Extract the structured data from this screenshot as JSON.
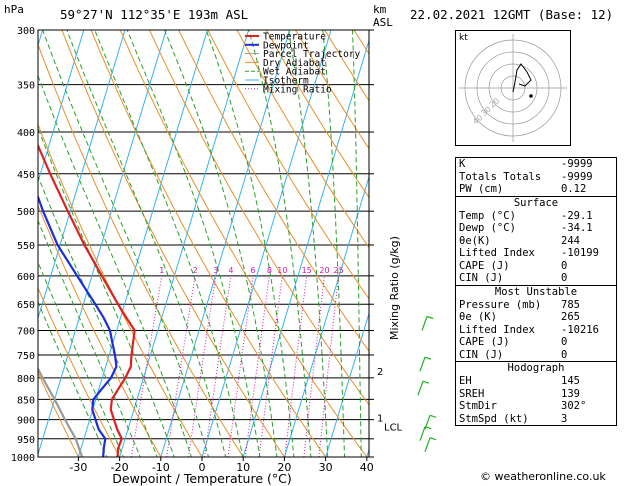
{
  "header": {
    "hpa_label": "hPa",
    "location": "59°27'N 112°35'E 193m ASL",
    "km_label": "km",
    "asl_label": "ASL",
    "datetime": "22.02.2021 12GMT (Base: 12)"
  },
  "chart_data": {
    "type": "skew-t",
    "xlabel": "Dewpoint / Temperature (°C)",
    "ylabel": "",
    "mixing_ratio_label": "Mixing Ratio (g/kg)",
    "x_ticks": [
      -30,
      -20,
      -10,
      0,
      10,
      20,
      30,
      40
    ],
    "pressure_ticks": [
      300,
      350,
      400,
      450,
      500,
      550,
      600,
      650,
      700,
      750,
      800,
      850,
      900,
      950,
      1000
    ],
    "km_ticks": [
      {
        "label": "2",
        "p": 785
      },
      {
        "label": "1",
        "p": 895
      }
    ],
    "lcl_label": "LCL",
    "lcl_p": 918,
    "mixing_ratio_values": [
      "1",
      "2",
      "3",
      "4",
      "6",
      "8",
      "10",
      "15",
      "20",
      "25"
    ],
    "legend": [
      "Temperature",
      "Dewpoint",
      "Parcel Trajectory",
      "Dry Adiabat",
      "Wet Adiabat",
      "Isotherm",
      "Mixing Ratio"
    ],
    "series": [
      {
        "name": "Temperature",
        "color": "#e02020",
        "points": [
          [
            1000,
            -20.5
          ],
          [
            975,
            -21.0
          ],
          [
            950,
            -20.8
          ],
          [
            925,
            -22.6
          ],
          [
            900,
            -24.1
          ],
          [
            875,
            -25.6
          ],
          [
            850,
            -26.1
          ],
          [
            825,
            -25.3
          ],
          [
            800,
            -24.4
          ],
          [
            775,
            -23.9
          ],
          [
            750,
            -24.6
          ],
          [
            725,
            -25.1
          ],
          [
            700,
            -25.6
          ],
          [
            675,
            -28.6
          ],
          [
            650,
            -31.6
          ],
          [
            600,
            -37.6
          ],
          [
            550,
            -44.1
          ],
          [
            500,
            -50.6
          ],
          [
            450,
            -57.6
          ],
          [
            400,
            -65.1
          ]
        ]
      },
      {
        "name": "Dewpoint",
        "color": "#1a2ee0",
        "points": [
          [
            1000,
            -24.0
          ],
          [
            975,
            -24.5
          ],
          [
            950,
            -24.8
          ],
          [
            925,
            -27.1
          ],
          [
            900,
            -28.6
          ],
          [
            875,
            -30.1
          ],
          [
            850,
            -30.6
          ],
          [
            825,
            -29.3
          ],
          [
            800,
            -27.9
          ],
          [
            775,
            -27.4
          ],
          [
            750,
            -28.6
          ],
          [
            725,
            -30.1
          ],
          [
            700,
            -31.6
          ],
          [
            675,
            -34.1
          ],
          [
            650,
            -37.1
          ],
          [
            600,
            -43.6
          ],
          [
            550,
            -50.6
          ],
          [
            500,
            -56.6
          ],
          [
            450,
            -62.6
          ]
        ]
      },
      {
        "name": "Parcel Trajectory",
        "color": "#999999",
        "points": [
          [
            1000,
            -29.1
          ],
          [
            950,
            -32.0
          ],
          [
            900,
            -36.0
          ],
          [
            850,
            -40.0
          ],
          [
            800,
            -44.5
          ],
          [
            750,
            -49.0
          ],
          [
            700,
            -54.0
          ]
        ]
      }
    ],
    "colors": {
      "dry_adiabat": "#e8902a",
      "wet_adiabat": "#2aa02a",
      "isotherm": "#36b3f0",
      "mixing_ratio": "#d018b0",
      "wind": "#22b022"
    }
  },
  "hodograph": {
    "label": "kt",
    "ring_labels": [
      "40",
      "30",
      "20"
    ]
  },
  "table_top": [
    {
      "label": "K",
      "value": "-9999"
    },
    {
      "label": "Totals Totals",
      "value": "-9999"
    },
    {
      "label": "PW (cm)",
      "value": "0.12"
    }
  ],
  "surface": {
    "title": "Surface",
    "rows": [
      {
        "label": "Temp (°C)",
        "value": "-29.1"
      },
      {
        "label": "Dewp (°C)",
        "value": "-34.1"
      },
      {
        "label": "θe(K)",
        "value": "244"
      },
      {
        "label": "Lifted Index",
        "value": "-10199"
      },
      {
        "label": "CAPE (J)",
        "value": "0"
      },
      {
        "label": "CIN (J)",
        "value": "0"
      }
    ]
  },
  "most_unstable": {
    "title": "Most Unstable",
    "rows": [
      {
        "label": "Pressure (mb)",
        "value": "785"
      },
      {
        "label": "θe (K)",
        "value": "265"
      },
      {
        "label": "Lifted Index",
        "value": "-10216"
      },
      {
        "label": "CAPE (J)",
        "value": "0"
      },
      {
        "label": "CIN (J)",
        "value": "0"
      }
    ]
  },
  "hodo_table": {
    "title": "Hodograph",
    "rows": [
      {
        "label": "EH",
        "value": "145"
      },
      {
        "label": "SREH",
        "value": "139"
      },
      {
        "label": "StmDir",
        "value": "302°"
      },
      {
        "label": "StmSpd (kt)",
        "value": "3"
      }
    ]
  },
  "footer": {
    "copyright": "© weatheronline.co.uk"
  }
}
